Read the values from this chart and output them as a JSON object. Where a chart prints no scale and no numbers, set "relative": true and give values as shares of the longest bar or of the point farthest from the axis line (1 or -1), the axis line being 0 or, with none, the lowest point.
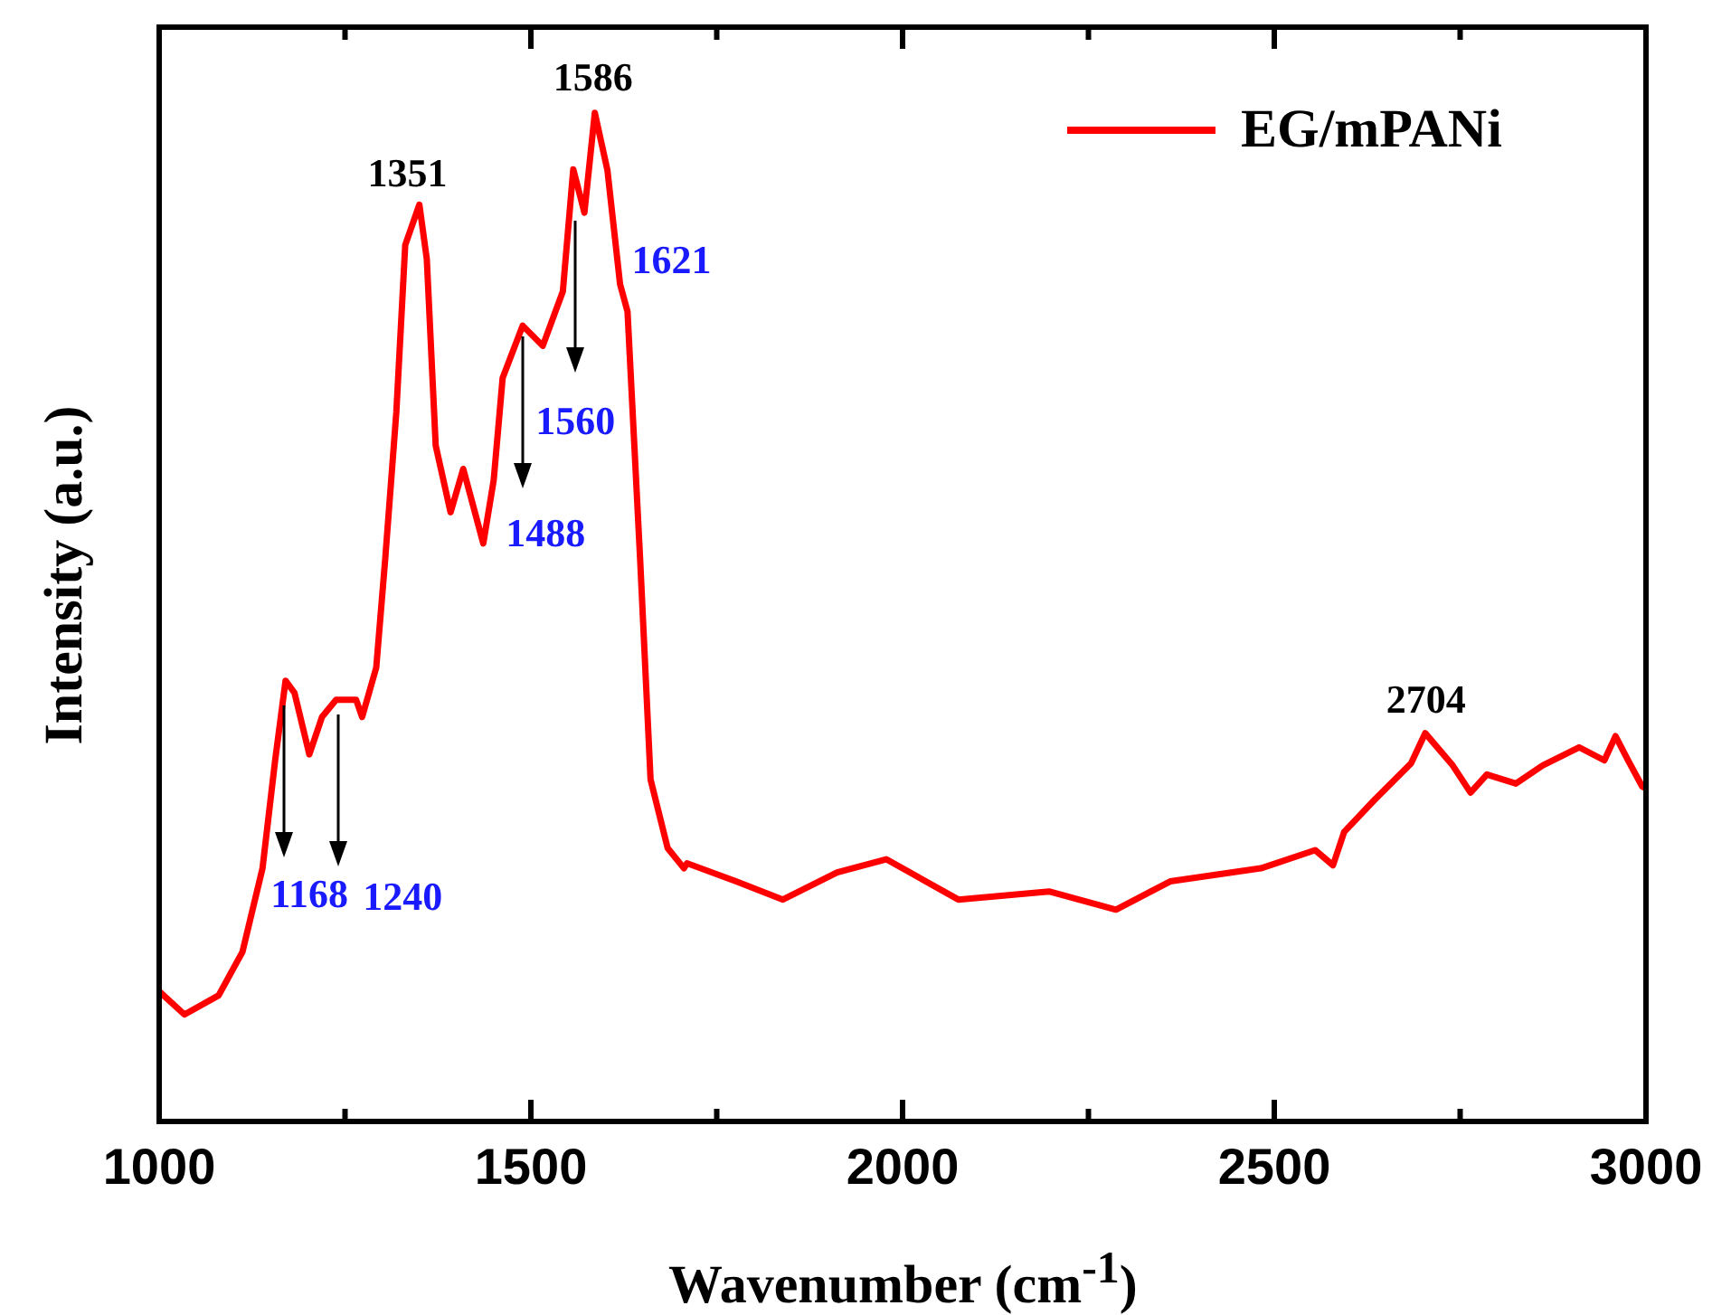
{
  "chart_data": {
    "type": "line",
    "relative": true,
    "xlabel": "Wavenumber (cm$^{-1}$)",
    "ylabel": "Intensity (a.u.)",
    "xlim": [
      1000,
      3000
    ],
    "xticks": [
      1000,
      {
        "value": 1250,
        "label": null
      },
      1500,
      {
        "value": 1750,
        "label": null
      },
      2000,
      {
        "value": 2250,
        "label": null
      },
      2500,
      {
        "value": 2750,
        "label": null
      },
      3000
    ],
    "legend": "top right",
    "marker": "none",
    "line_style": "solid",
    "series": [
      {
        "name": "EG/mPANi",
        "color": "#ff0000",
        "x": [
          1000,
          1034,
          1080,
          1112,
          1139,
          1156,
          1170,
          1182,
          1202,
          1219,
          1238,
          1265,
          1273,
          1292,
          1304,
          1319,
          1331,
          1350,
          1360,
          1372,
          1392,
          1409,
          1436,
          1450,
          1462,
          1489,
          1516,
          1543,
          1557,
          1572,
          1586,
          1603,
          1620,
          1630,
          1647,
          1661,
          1684,
          1706,
          1710,
          1776,
          1839,
          1912,
          1978,
          2075,
          2197,
          2287,
          2360,
          2482,
          2555,
          2579,
          2594,
          2635,
          2684,
          2703,
          2740,
          2764,
          2786,
          2825,
          2861,
          2910,
          2944,
          2959,
          2976,
          2995,
          3000
        ],
        "values": [
          0.129,
          0.106,
          0.125,
          0.168,
          0.251,
          0.358,
          0.437,
          0.425,
          0.364,
          0.401,
          0.418,
          0.418,
          0.401,
          0.45,
          0.557,
          0.703,
          0.869,
          0.909,
          0.855,
          0.67,
          0.604,
          0.647,
          0.573,
          0.636,
          0.737,
          0.789,
          0.769,
          0.823,
          0.944,
          0.901,
          1,
          0.943,
          0.83,
          0.803,
          0.557,
          0.339,
          0.271,
          0.251,
          0.256,
          0.238,
          0.22,
          0.247,
          0.26,
          0.22,
          0.228,
          0.21,
          0.238,
          0.251,
          0.269,
          0.254,
          0.287,
          0.319,
          0.355,
          0.385,
          0.353,
          0.326,
          0.344,
          0.335,
          0.353,
          0.371,
          0.358,
          0.382,
          0.358,
          0.332,
          0.33
        ]
      }
    ],
    "annotations": [
      {
        "text": "1351",
        "x": 1351,
        "y": 0.909
      },
      {
        "text": "1586",
        "x": 1586,
        "y": 1
      },
      {
        "text": "2704",
        "x": 2704,
        "y": 0.385
      },
      {
        "text": "1168",
        "x": 1168,
        "y": 0.42
      },
      {
        "text": "1240",
        "x": 1240,
        "y": 0.41
      },
      {
        "text": "1488",
        "x": 1488,
        "y": 0.785
      },
      {
        "text": "1560",
        "x": 1560,
        "y": 0.9
      },
      {
        "text": "1621",
        "x": 1621,
        "y": 0.83
      }
    ]
  }
}
